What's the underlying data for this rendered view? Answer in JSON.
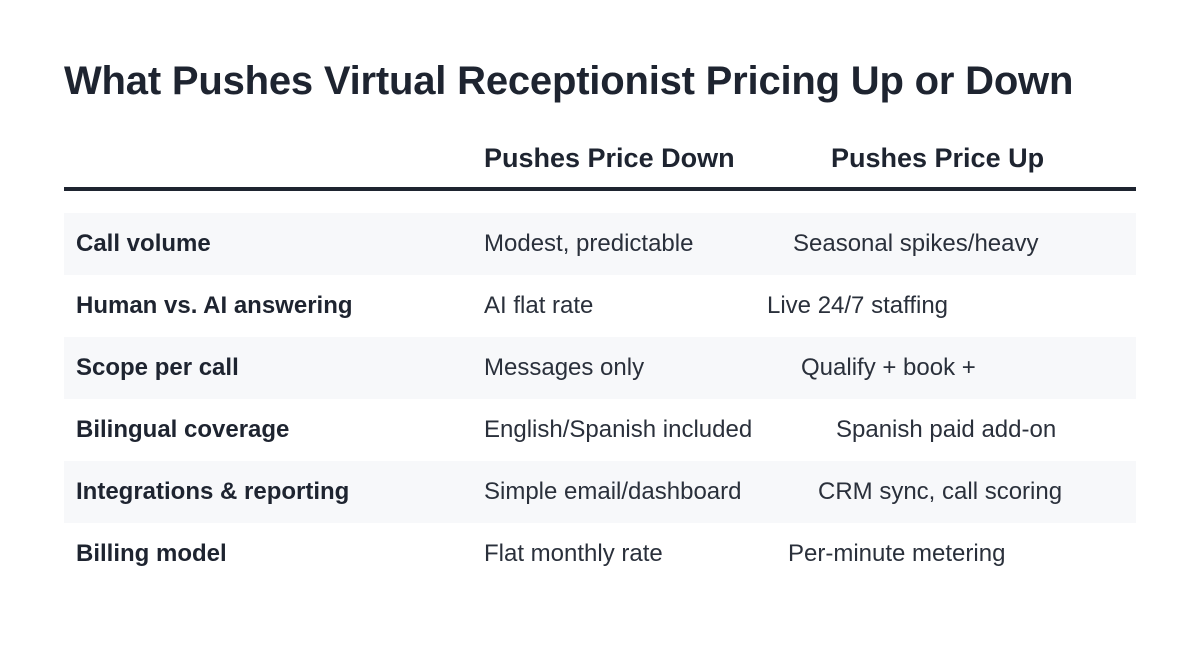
{
  "title": "What Pushes Virtual Receptionist Pricing Up or Down",
  "headers": {
    "factor": "",
    "down": "Pushes Price Down",
    "up": "Pushes Price Up"
  },
  "rows": [
    {
      "factor": "Call volume",
      "down": "Modest, predictable",
      "up": "Seasonal spikes/heavy"
    },
    {
      "factor": "Human vs. AI answering",
      "down": "AI flat rate",
      "up": "Live 24/7 staffing"
    },
    {
      "factor": "Scope per call",
      "down": "Messages only",
      "up": "Qualify + book +"
    },
    {
      "factor": "Bilingual coverage",
      "down": "English/Spanish included",
      "up": "Spanish paid add-on"
    },
    {
      "factor": "Integrations & reporting",
      "down": "Simple email/dashboard",
      "up": "CRM sync, call scoring"
    },
    {
      "factor": "Billing model",
      "down": "Flat monthly rate",
      "up": "Per-minute metering"
    }
  ]
}
